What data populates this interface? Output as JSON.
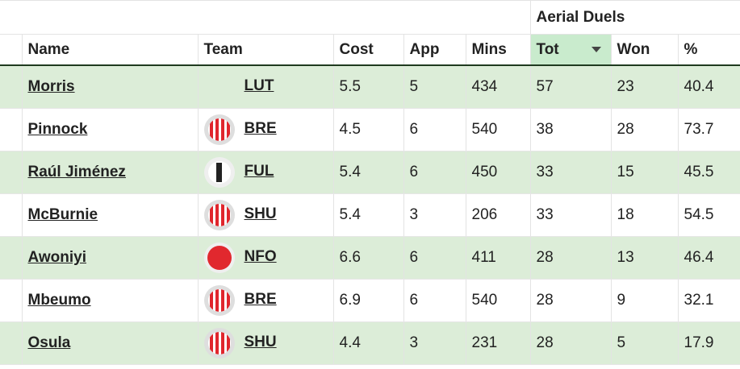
{
  "header": {
    "group": "Aerial Duels",
    "columns": [
      "Name",
      "Team",
      "Cost",
      "App",
      "Mins",
      "Tot",
      "Won",
      "%"
    ]
  },
  "table": {
    "rows": [
      [
        "Morris",
        "LUT",
        5.5,
        5,
        434,
        57,
        23,
        40.4
      ],
      [
        "Pinnock",
        "BRE",
        4.5,
        6,
        540,
        38,
        28,
        73.7
      ],
      [
        "Raúl Jiménez",
        "FUL",
        5.4,
        6,
        450,
        33,
        15,
        45.5
      ],
      [
        "McBurnie",
        "SHU",
        5.4,
        3,
        206,
        33,
        18,
        54.5
      ],
      [
        "Awoniyi",
        "NFO",
        6.6,
        6,
        411,
        28,
        13,
        46.4
      ],
      [
        "Mbeumo",
        "BRE",
        6.9,
        6,
        540,
        28,
        9,
        32.1
      ],
      [
        "Osula",
        "SHU",
        4.4,
        3,
        231,
        28,
        5,
        17.9
      ]
    ]
  }
}
